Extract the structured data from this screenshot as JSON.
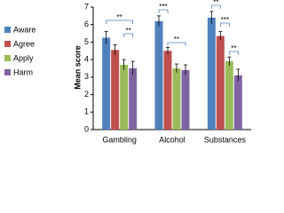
{
  "chart_data": {
    "type": "bar",
    "y_label": "Mean score",
    "categories": [
      "Gambling",
      "Alcohol",
      "Substances"
    ],
    "series": [
      {
        "name": "Aware",
        "color": "#4f81bd",
        "values": [
          5.25,
          6.2,
          6.4
        ],
        "errors": [
          0.35,
          0.3,
          0.35
        ]
      },
      {
        "name": "Agree",
        "color": "#c0504d",
        "values": [
          4.55,
          4.5,
          5.35
        ],
        "errors": [
          0.3,
          0.2,
          0.25
        ]
      },
      {
        "name": "Apply",
        "color": "#9bbb59",
        "values": [
          3.7,
          3.5,
          3.9
        ],
        "errors": [
          0.3,
          0.25,
          0.25
        ]
      },
      {
        "name": "Harm",
        "color": "#8064a2",
        "values": [
          3.5,
          3.4,
          3.1
        ],
        "errors": [
          0.4,
          0.3,
          0.35
        ]
      }
    ],
    "ylim": [
      0,
      7
    ],
    "yticks": [
      0,
      1,
      2,
      3,
      4,
      5,
      6,
      7
    ],
    "annotations": [
      "**",
      "**",
      "***",
      "**",
      "**",
      "***",
      "**"
    ]
  }
}
